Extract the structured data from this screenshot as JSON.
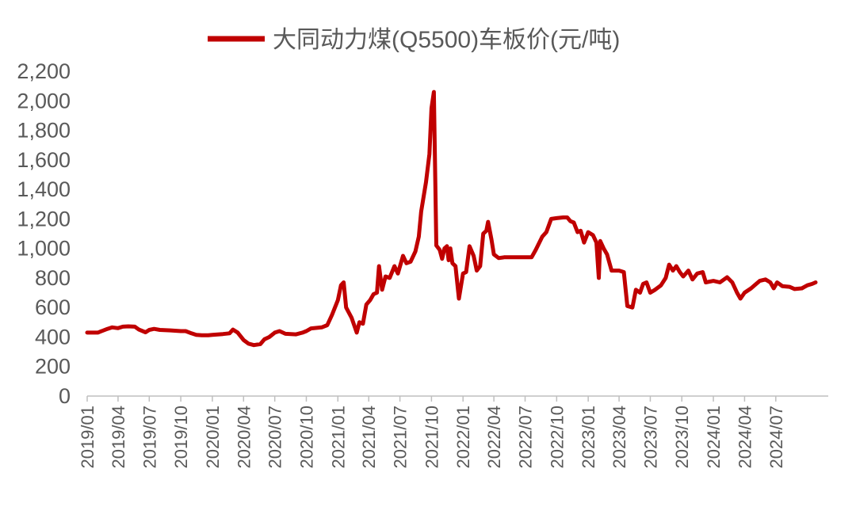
{
  "chart_data": {
    "type": "line",
    "title": "",
    "xlabel": "",
    "ylabel": "",
    "ylim": [
      0,
      2200
    ],
    "yticks": [
      0,
      200,
      400,
      600,
      800,
      1000,
      1200,
      1400,
      1600,
      1800,
      2000,
      2200
    ],
    "ytick_labels": [
      "0",
      "200",
      "400",
      "600",
      "800",
      "1,000",
      "1,200",
      "1,400",
      "1,600",
      "1,800",
      "2,000",
      "2,200"
    ],
    "xlim": [
      "2019/01",
      "2024/12"
    ],
    "xtick_labels": [
      "2019/01",
      "2019/04",
      "2019/07",
      "2019/10",
      "2020/01",
      "2020/04",
      "2020/07",
      "2020/10",
      "2021/01",
      "2021/04",
      "2021/07",
      "2021/10",
      "2022/01",
      "2022/04",
      "2022/07",
      "2022/10",
      "2023/01",
      "2023/04",
      "2023/07",
      "2023/10",
      "2024/01",
      "2024/04",
      "2024/07"
    ],
    "grid": false,
    "legend_position": "top-center",
    "series": [
      {
        "name": "大同动力煤(Q5500)车板价(元/吨)",
        "color": "#c00000",
        "points": [
          [
            "2019/01/01",
            430
          ],
          [
            "2019/02/01",
            430
          ],
          [
            "2019/03/01",
            455
          ],
          [
            "2019/03/15",
            465
          ],
          [
            "2019/04/01",
            460
          ],
          [
            "2019/04/15",
            470
          ],
          [
            "2019/05/01",
            472
          ],
          [
            "2019/05/20",
            470
          ],
          [
            "2019/06/01",
            450
          ],
          [
            "2019/06/20",
            432
          ],
          [
            "2019/07/01",
            448
          ],
          [
            "2019/07/15",
            455
          ],
          [
            "2019/08/01",
            448
          ],
          [
            "2019/09/01",
            445
          ],
          [
            "2019/10/01",
            440
          ],
          [
            "2019/10/15",
            440
          ],
          [
            "2019/11/01",
            425
          ],
          [
            "2019/11/15",
            415
          ],
          [
            "2019/12/01",
            412
          ],
          [
            "2019/12/20",
            412
          ],
          [
            "2020/01/01",
            415
          ],
          [
            "2020/02/01",
            420
          ],
          [
            "2020/02/20",
            425
          ],
          [
            "2020/03/01",
            450
          ],
          [
            "2020/03/15",
            430
          ],
          [
            "2020/04/01",
            380
          ],
          [
            "2020/04/15",
            355
          ],
          [
            "2020/05/01",
            345
          ],
          [
            "2020/05/20",
            352
          ],
          [
            "2020/06/01",
            385
          ],
          [
            "2020/06/15",
            400
          ],
          [
            "2020/07/01",
            430
          ],
          [
            "2020/07/15",
            440
          ],
          [
            "2020/08/01",
            422
          ],
          [
            "2020/09/01",
            418
          ],
          [
            "2020/09/20",
            430
          ],
          [
            "2020/10/01",
            440
          ],
          [
            "2020/10/15",
            458
          ],
          [
            "2020/11/01",
            462
          ],
          [
            "2020/11/15",
            465
          ],
          [
            "2020/12/01",
            480
          ],
          [
            "2020/12/15",
            550
          ],
          [
            "2021/01/01",
            650
          ],
          [
            "2021/01/10",
            750
          ],
          [
            "2021/01/18",
            770
          ],
          [
            "2021/01/25",
            600
          ],
          [
            "2021/02/10",
            530
          ],
          [
            "2021/02/25",
            430
          ],
          [
            "2021/03/05",
            500
          ],
          [
            "2021/03/15",
            490
          ],
          [
            "2021/03/25",
            620
          ],
          [
            "2021/04/05",
            650
          ],
          [
            "2021/04/15",
            690
          ],
          [
            "2021/04/25",
            700
          ],
          [
            "2021/05/01",
            880
          ],
          [
            "2021/05/10",
            720
          ],
          [
            "2021/05/20",
            810
          ],
          [
            "2021/06/01",
            800
          ],
          [
            "2021/06/15",
            880
          ],
          [
            "2021/06/25",
            830
          ],
          [
            "2021/07/10",
            950
          ],
          [
            "2021/07/20",
            900
          ],
          [
            "2021/08/01",
            910
          ],
          [
            "2021/08/15",
            980
          ],
          [
            "2021/08/25",
            1080
          ],
          [
            "2021/09/01",
            1250
          ],
          [
            "2021/09/15",
            1450
          ],
          [
            "2021/09/25",
            1640
          ],
          [
            "2021/10/01",
            1950
          ],
          [
            "2021/10/08",
            2060
          ],
          [
            "2021/10/15",
            1020
          ],
          [
            "2021/10/25",
            990
          ],
          [
            "2021/11/01",
            930
          ],
          [
            "2021/11/08",
            1000
          ],
          [
            "2021/11/15",
            1015
          ],
          [
            "2021/11/20",
            920
          ],
          [
            "2021/11/25",
            1000
          ],
          [
            "2021/12/01",
            900
          ],
          [
            "2021/12/10",
            880
          ],
          [
            "2021/12/20",
            660
          ],
          [
            "2022/01/01",
            830
          ],
          [
            "2022/01/10",
            840
          ],
          [
            "2022/01/20",
            1015
          ],
          [
            "2022/02/01",
            950
          ],
          [
            "2022/02/10",
            850
          ],
          [
            "2022/02/20",
            880
          ],
          [
            "2022/03/01",
            1100
          ],
          [
            "2022/03/10",
            1120
          ],
          [
            "2022/03/15",
            1180
          ],
          [
            "2022/03/25",
            1060
          ],
          [
            "2022/04/01",
            960
          ],
          [
            "2022/04/15",
            935
          ],
          [
            "2022/05/01",
            940
          ],
          [
            "2022/06/01",
            940
          ],
          [
            "2022/07/01",
            940
          ],
          [
            "2022/07/20",
            940
          ],
          [
            "2022/08/01",
            990
          ],
          [
            "2022/08/20",
            1080
          ],
          [
            "2022/09/01",
            1110
          ],
          [
            "2022/09/15",
            1200
          ],
          [
            "2022/10/01",
            1205
          ],
          [
            "2022/10/20",
            1210
          ],
          [
            "2022/11/01",
            1210
          ],
          [
            "2022/11/10",
            1185
          ],
          [
            "2022/11/20",
            1175
          ],
          [
            "2022/12/01",
            1110
          ],
          [
            "2022/12/10",
            1120
          ],
          [
            "2022/12/20",
            1040
          ],
          [
            "2023/01/01",
            1110
          ],
          [
            "2023/01/15",
            1090
          ],
          [
            "2023/01/25",
            1040
          ],
          [
            "2023/02/01",
            800
          ],
          [
            "2023/02/05",
            1050
          ],
          [
            "2023/02/15",
            1000
          ],
          [
            "2023/02/25",
            960
          ],
          [
            "2023/03/10",
            850
          ],
          [
            "2023/04/01",
            850
          ],
          [
            "2023/04/15",
            840
          ],
          [
            "2023/04/25",
            610
          ],
          [
            "2023/05/10",
            600
          ],
          [
            "2023/05/20",
            720
          ],
          [
            "2023/06/01",
            700
          ],
          [
            "2023/06/10",
            760
          ],
          [
            "2023/06/20",
            770
          ],
          [
            "2023/07/01",
            700
          ],
          [
            "2023/07/15",
            720
          ],
          [
            "2023/08/01",
            750
          ],
          [
            "2023/08/15",
            800
          ],
          [
            "2023/08/25",
            890
          ],
          [
            "2023/09/05",
            850
          ],
          [
            "2023/09/15",
            880
          ],
          [
            "2023/09/25",
            840
          ],
          [
            "2023/10/05",
            810
          ],
          [
            "2023/10/20",
            850
          ],
          [
            "2023/11/01",
            790
          ],
          [
            "2023/11/15",
            830
          ],
          [
            "2023/12/01",
            840
          ],
          [
            "2023/12/10",
            770
          ],
          [
            "2024/01/01",
            780
          ],
          [
            "2024/01/20",
            770
          ],
          [
            "2024/02/10",
            805
          ],
          [
            "2024/02/25",
            770
          ],
          [
            "2024/03/10",
            700
          ],
          [
            "2024/03/20",
            660
          ],
          [
            "2024/04/01",
            700
          ],
          [
            "2024/04/20",
            730
          ],
          [
            "2024/05/05",
            760
          ],
          [
            "2024/05/15",
            780
          ],
          [
            "2024/06/01",
            790
          ],
          [
            "2024/06/15",
            770
          ],
          [
            "2024/06/25",
            730
          ],
          [
            "2024/07/05",
            770
          ],
          [
            "2024/07/20",
            745
          ],
          [
            "2024/08/10",
            740
          ],
          [
            "2024/08/25",
            725
          ],
          [
            "2024/09/15",
            730
          ],
          [
            "2024/10/01",
            750
          ],
          [
            "2024/10/15",
            760
          ],
          [
            "2024/10/25",
            770
          ]
        ]
      }
    ]
  }
}
